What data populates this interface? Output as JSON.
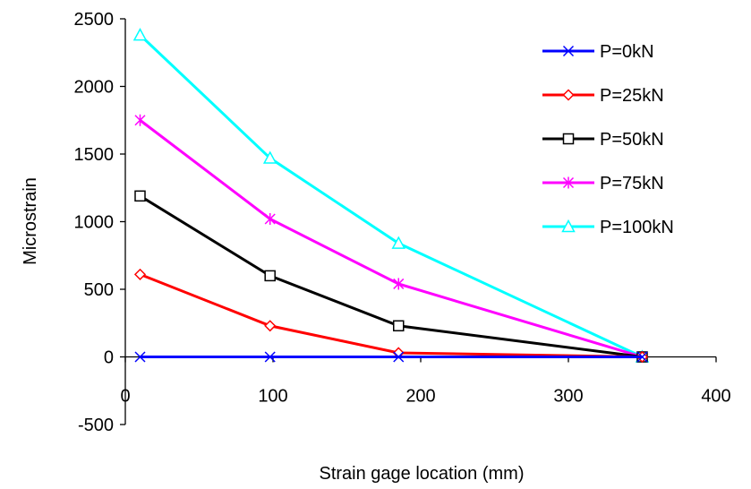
{
  "chart_data": {
    "type": "line",
    "title": "",
    "xlabel": "Strain gage location (mm)",
    "ylabel": "Microstrain",
    "xlim": [
      0,
      400
    ],
    "ylim": [
      -500,
      2500
    ],
    "xticks": [
      0,
      100,
      200,
      300,
      400
    ],
    "yticks": [
      -500,
      0,
      500,
      1000,
      1500,
      2000,
      2500
    ],
    "grid": false,
    "legend_position": "top-right",
    "x": [
      10,
      98,
      185,
      350
    ],
    "series": [
      {
        "name": "P=0kN",
        "color": "#0000ff",
        "marker": "x",
        "values": [
          0,
          0,
          0,
          0
        ]
      },
      {
        "name": "P=25kN",
        "color": "#ff0000",
        "marker": "diamond",
        "values": [
          610,
          230,
          30,
          0
        ]
      },
      {
        "name": "P=50kN",
        "color": "#000000",
        "marker": "square",
        "values": [
          1190,
          600,
          230,
          0
        ]
      },
      {
        "name": "P=75kN",
        "color": "#ff00ff",
        "marker": "star",
        "values": [
          1750,
          1020,
          540,
          0
        ]
      },
      {
        "name": "P=100kN",
        "color": "#00ffff",
        "marker": "triangle",
        "values": [
          2380,
          1470,
          840,
          0
        ]
      }
    ]
  }
}
